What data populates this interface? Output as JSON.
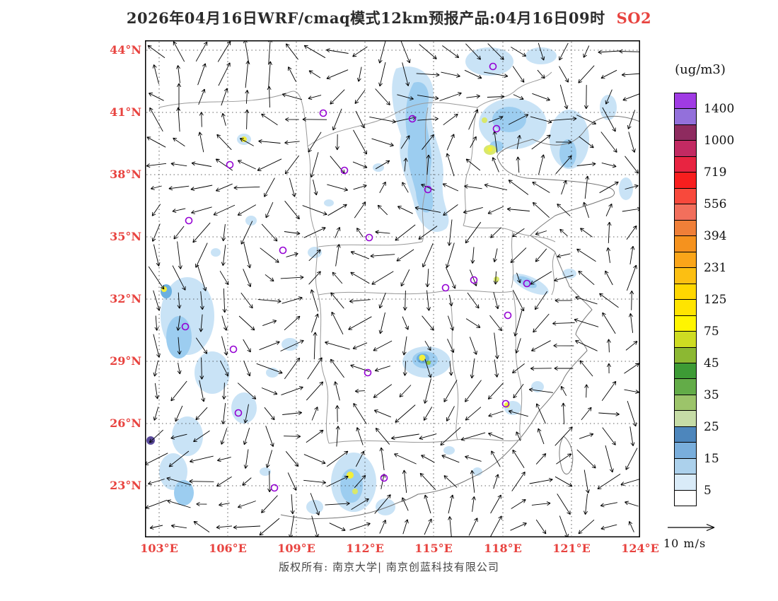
{
  "title": {
    "text": "2026年04月16日WRF/cmaq模式12km预报产品:04月16日09时",
    "pollutant": "SO2"
  },
  "axes": {
    "lat_labels": [
      "44°N",
      "41°N",
      "38°N",
      "35°N",
      "32°N",
      "29°N",
      "26°N",
      "23°N"
    ],
    "lon_labels": [
      "103°E",
      "106°E",
      "109°E",
      "112°E",
      "115°E",
      "118°E",
      "121°E",
      "124°E"
    ]
  },
  "colorbar": {
    "unit_label": "(ug/m3)",
    "tick_labels": [
      "1400",
      "1000",
      "719",
      "556",
      "394",
      "231",
      "125",
      "75",
      "45",
      "35",
      "25",
      "15",
      "5"
    ],
    "segment_colors": [
      "#A03BE4",
      "#9370DB",
      "#8E2B5F",
      "#C22A62",
      "#E82441",
      "#F81E1E",
      "#F8493C",
      "#F26F5C",
      "#EF7F38",
      "#F5921E",
      "#FAA519",
      "#FCBF12",
      "#FFD700",
      "#FFE400",
      "#FFF500",
      "#CEDC22",
      "#8CB832",
      "#3D9B35",
      "#63AC48",
      "#9CC46A",
      "#C6DCA6",
      "#4D86BC",
      "#79AEDC",
      "#ACD1EC",
      "#D9EBF8",
      "#FFFFFF"
    ]
  },
  "wind_legend": {
    "label": "10 m/s"
  },
  "footer": {
    "text": "版权所有: 南京大学| 南京创蓝科技有限公司"
  },
  "colors": {
    "axis_label": "#e8433f",
    "title": "#2b2b2b",
    "pollutant": "#e8433f",
    "footer": "#454545",
    "shading_light_blue": "#c9e3f6",
    "shading_mid_blue": "#9ccdf0",
    "shading_deep_blue": "#6bb0e0",
    "hotspot_yellow": "#f3ef3a",
    "hotspot_green": "#8dc63f",
    "city_marker_purple": "#9400D3"
  }
}
